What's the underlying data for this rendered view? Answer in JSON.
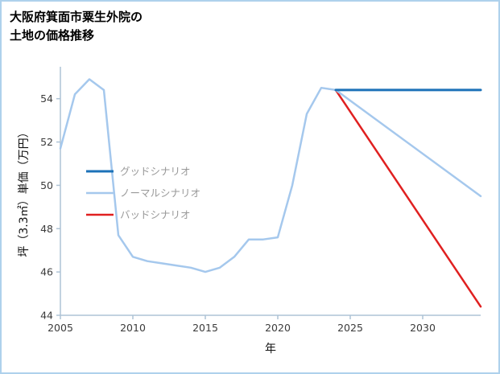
{
  "title": {
    "line1": "大阪府箕面市粟生外院の",
    "line2": "土地の価格推移"
  },
  "chart_data": {
    "type": "line",
    "title": "大阪府箕面市粟生外院の土地の価格推移",
    "xlabel": "年",
    "ylabel": "坪（3.3㎡）単価（万円）",
    "xlim": [
      2005,
      2034
    ],
    "ylim": [
      44,
      55.4
    ],
    "x_ticks": [
      2005,
      2010,
      2015,
      2020,
      2025,
      2030
    ],
    "y_ticks": [
      44,
      46,
      48,
      50,
      52,
      54
    ],
    "grid": false,
    "legend_position": "center-left",
    "axis_color": "#aec3d5",
    "tick_label_color": "#3b3b3b",
    "legend_text_color": "#999999",
    "border_color": "#aed1ec",
    "series": [
      {
        "id": "good",
        "name": "グッドシナリオ",
        "color": "#1c72b8",
        "width": 3,
        "x": [
          2024,
          2034
        ],
        "values": [
          54.4,
          54.4
        ]
      },
      {
        "id": "normal",
        "name": "ノーマルシナリオ",
        "color": "#a5c8ed",
        "width": 2.5,
        "x": [
          2005,
          2006,
          2007,
          2008,
          2009,
          2010,
          2011,
          2012,
          2013,
          2014,
          2015,
          2016,
          2017,
          2018,
          2019,
          2020,
          2021,
          2022,
          2023,
          2024,
          2034
        ],
        "values": [
          51.7,
          54.2,
          54.9,
          54.4,
          47.7,
          46.7,
          46.5,
          46.4,
          46.3,
          46.2,
          46.0,
          46.2,
          46.7,
          47.5,
          47.5,
          47.6,
          50.0,
          53.3,
          54.5,
          54.4,
          49.5
        ]
      },
      {
        "id": "bad",
        "name": "バッドシナリオ",
        "color": "#e02020",
        "width": 2.5,
        "x": [
          2024,
          2034
        ],
        "values": [
          54.4,
          44.4
        ]
      }
    ]
  }
}
